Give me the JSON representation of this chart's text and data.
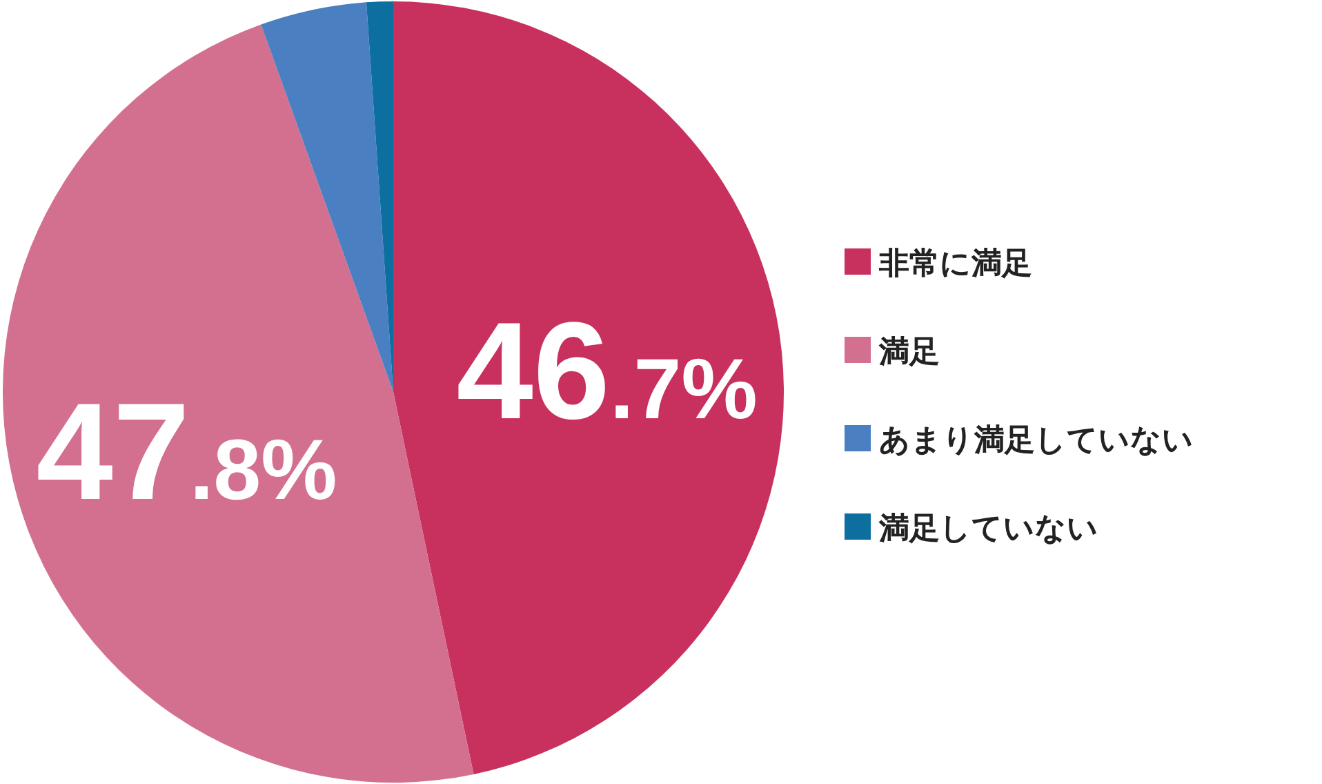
{
  "chart_data": {
    "type": "pie",
    "categories": [
      "非常に満足",
      "満足",
      "あまり満足していない",
      "満足していない"
    ],
    "values": [
      46.7,
      47.8,
      4.4,
      1.1
    ],
    "colors": [
      "#c8305e",
      "#d4708f",
      "#4a7fc1",
      "#0d6fa0"
    ],
    "value_labels": [
      "46.7%",
      "47.8%",
      null,
      null
    ],
    "legend": "right"
  }
}
